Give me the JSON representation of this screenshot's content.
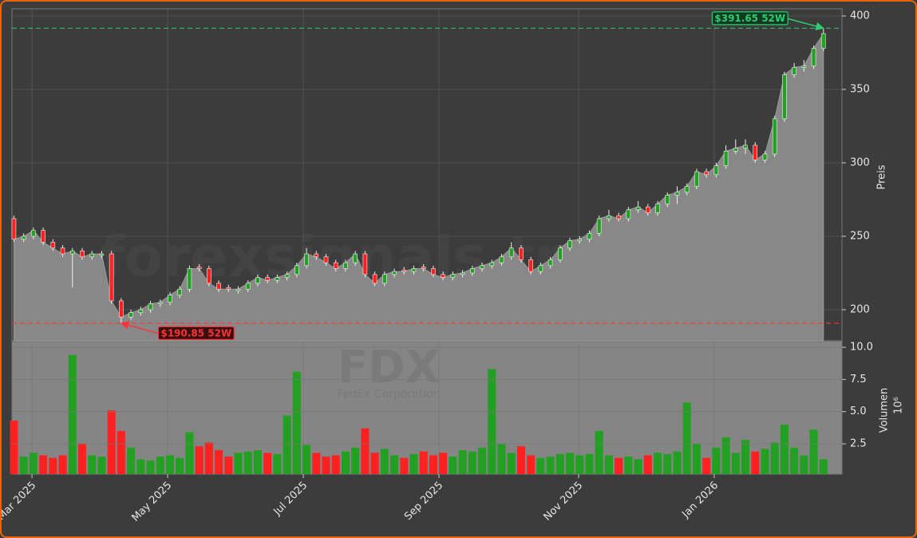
{
  "chart_data": [
    {
      "type": "candlestick",
      "watermark": "forexsignals.trade",
      "ylabel": "Preis",
      "xlim": [
        -0.2,
        84.9
      ],
      "ylim": [
        178.8,
        404.9
      ],
      "yticks": [
        200,
        250,
        300,
        350,
        400
      ],
      "grid": true,
      "up_color": "#22a022",
      "down_color": "#ff2020",
      "area_color": "#888888",
      "open": [
        262,
        248,
        250,
        254,
        246,
        242,
        238,
        240,
        236,
        237,
        238,
        206,
        195,
        198,
        200,
        204,
        205,
        210,
        214,
        229,
        228,
        218,
        215,
        213,
        214,
        218,
        222,
        220,
        222,
        224,
        230,
        238,
        236,
        232,
        228,
        232,
        238,
        224,
        218,
        224,
        227,
        226,
        229,
        228,
        224,
        222,
        224,
        225,
        228,
        230,
        232,
        236,
        242,
        234,
        226,
        230,
        234,
        242,
        247,
        248,
        252,
        262,
        264,
        262,
        268,
        270,
        266,
        272,
        278,
        280,
        284,
        294,
        292,
        298,
        308,
        310,
        312,
        302,
        306,
        330,
        360,
        365,
        366,
        378
      ],
      "high": [
        264,
        252,
        256,
        256,
        248,
        244,
        242,
        242,
        240,
        240,
        240,
        208,
        200,
        202,
        206,
        207,
        212,
        216,
        230,
        231,
        230,
        220,
        217,
        216,
        220,
        224,
        224,
        224,
        226,
        232,
        242,
        240,
        238,
        234,
        234,
        240,
        240,
        226,
        226,
        228,
        229,
        230,
        231,
        230,
        226,
        226,
        227,
        230,
        232,
        234,
        238,
        246,
        244,
        236,
        232,
        236,
        244,
        249,
        250,
        254,
        264,
        268,
        266,
        270,
        274,
        272,
        274,
        280,
        284,
        286,
        296,
        296,
        300,
        312,
        316,
        316,
        314,
        308,
        332,
        362,
        368,
        370,
        380,
        391.65
      ],
      "low": [
        246,
        246,
        248,
        244,
        240,
        236,
        215,
        234,
        234,
        235,
        204,
        190.85,
        193,
        196,
        198,
        202,
        203,
        208,
        212,
        226,
        216,
        212,
        212,
        211,
        212,
        216,
        218,
        218,
        220,
        222,
        228,
        234,
        230,
        226,
        226,
        230,
        222,
        216,
        216,
        222,
        224,
        224,
        226,
        222,
        220,
        220,
        222,
        223,
        226,
        228,
        230,
        234,
        232,
        224,
        224,
        228,
        232,
        240,
        245,
        246,
        250,
        260,
        260,
        260,
        266,
        264,
        264,
        270,
        272,
        278,
        282,
        290,
        290,
        296,
        306,
        306,
        300,
        300,
        304,
        328,
        358,
        362,
        364,
        376
      ],
      "close": [
        248,
        250,
        254,
        246,
        242,
        238,
        240,
        236,
        238,
        238,
        206,
        195,
        198,
        200,
        204,
        205,
        210,
        214,
        228,
        228,
        218,
        214,
        214,
        214,
        218,
        222,
        220,
        222,
        224,
        230,
        238,
        236,
        232,
        228,
        232,
        238,
        224,
        218,
        224,
        226,
        226,
        228,
        228,
        224,
        222,
        224,
        225,
        228,
        230,
        232,
        236,
        242,
        234,
        226,
        230,
        234,
        242,
        247,
        248,
        252,
        262,
        264,
        262,
        268,
        270,
        266,
        272,
        278,
        280,
        284,
        294,
        292,
        298,
        308,
        310,
        312,
        302,
        306,
        330,
        360,
        365,
        366,
        378,
        388
      ],
      "annotations": [
        {
          "value": 391.65,
          "label": "$391.65 52W",
          "index": 83,
          "color": "#2ecc71"
        },
        {
          "value": 190.85,
          "label": "$190.85 52W",
          "index": 11,
          "color": "#ff3333"
        }
      ]
    },
    {
      "type": "bar",
      "ticker": "FDX",
      "company": "FedEx Corporation",
      "ylabel": "Volumen",
      "scale_label": "10⁶",
      "xlim": [
        -0.2,
        84.9
      ],
      "ylim": [
        0.14,
        10.44
      ],
      "yticks": [
        {
          "value": 10,
          "label": "10.0"
        },
        7.5,
        {
          "value": 5,
          "label": "5.0"
        },
        2.5
      ],
      "xticks": [
        {
          "value": 1.85,
          "label": "Mar 2025"
        },
        {
          "value": 15.76,
          "label": "May 2025"
        },
        {
          "value": 29.67,
          "label": "Jul 2025"
        },
        {
          "value": 43.58,
          "label": "Sep 2025"
        },
        {
          "value": 57.9,
          "label": "Nov 2025"
        },
        {
          "value": 71.8,
          "label": "Jan 2026"
        }
      ],
      "grid": true,
      "values": [
        4.3,
        1.5,
        1.8,
        1.6,
        1.4,
        1.6,
        9.4,
        2.5,
        1.6,
        1.5,
        5.1,
        3.5,
        2.2,
        1.3,
        1.2,
        1.5,
        1.6,
        1.4,
        3.4,
        2.3,
        2.6,
        2.0,
        1.5,
        1.8,
        1.9,
        2.0,
        1.8,
        1.7,
        4.7,
        8.1,
        2.4,
        1.8,
        1.5,
        1.6,
        1.9,
        2.2,
        3.7,
        1.8,
        2.1,
        1.6,
        1.4,
        1.7,
        1.9,
        1.6,
        1.8,
        1.5,
        2.0,
        1.9,
        2.2,
        8.3,
        2.5,
        1.8,
        2.3,
        1.6,
        1.4,
        1.5,
        1.7,
        1.8,
        1.6,
        1.7,
        3.5,
        1.6,
        1.4,
        1.5,
        1.3,
        1.6,
        1.8,
        1.7,
        1.9,
        5.7,
        2.5,
        1.4,
        2.2,
        3.0,
        1.8,
        2.8,
        1.9,
        2.1,
        2.6,
        4.0,
        2.2,
        1.6,
        3.6,
        1.3
      ]
    }
  ]
}
